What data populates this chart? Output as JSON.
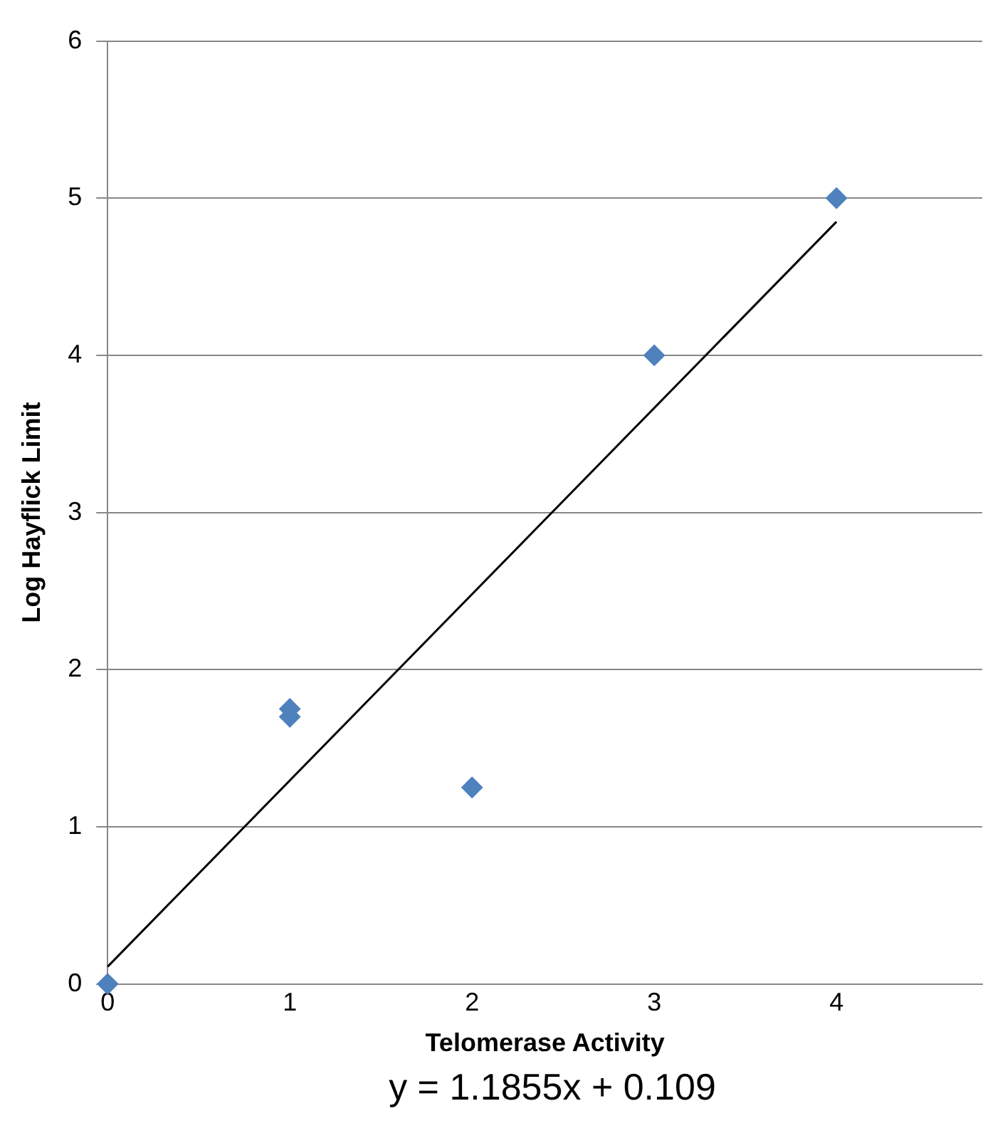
{
  "chart_data": {
    "type": "scatter",
    "xlabel": "Telomerase Activity",
    "ylabel": "Log Hayflick Limit",
    "x": [
      0,
      1,
      1,
      2,
      3,
      4
    ],
    "series": [
      {
        "color": "#4f81bd",
        "marker": "diamond",
        "values": [
          0,
          1.7,
          1.75,
          1.25,
          4,
          5
        ]
      },
      {
        "type": "line",
        "color": "#000000",
        "marker": "none",
        "x": [
          0,
          4
        ],
        "values": [
          0.11,
          4.85
        ]
      }
    ],
    "xlim": [
      0,
      4.8
    ],
    "xticks": [
      0,
      1,
      2,
      3,
      4
    ],
    "ylim": [
      0,
      6
    ],
    "yticks": [
      0,
      1,
      2,
      3,
      4,
      5,
      6
    ],
    "grid": "y",
    "legend": false,
    "annotations": [
      "y = 1.1855x + 0.109"
    ]
  }
}
